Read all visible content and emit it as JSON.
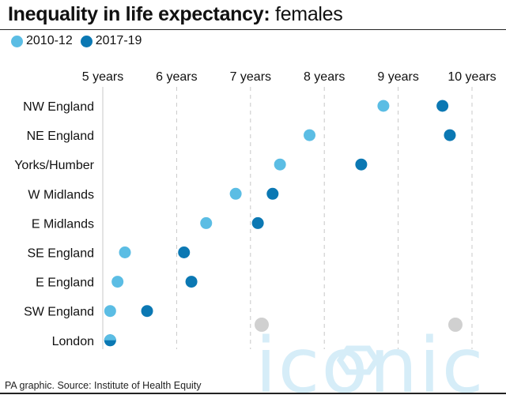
{
  "title_bold": "Inequality in life expectancy:",
  "title_light": "females",
  "source": "PA graphic. Source: Institute of Health Equity",
  "watermark_text": "iconic",
  "colors": {
    "series_2010": "#5bbde4",
    "series_2017": "#0b78b3",
    "grid": "#c8c8c8",
    "watermark": "#d6edf8",
    "watermark_dot": "#d0d0d0"
  },
  "chart_data": {
    "type": "scatter",
    "title": "Inequality in life expectancy: females",
    "x_ticks": [
      5,
      6,
      7,
      8,
      9,
      10
    ],
    "x_tick_labels": [
      "5 years",
      "6 years",
      "7 years",
      "8 years",
      "9 years",
      "10 years"
    ],
    "xlim": [
      5,
      10
    ],
    "grid": true,
    "legend_position": "top-left",
    "categories": [
      "NW England",
      "NE England",
      "Yorks/Humber",
      "W Midlands",
      "E Midlands",
      "SE England",
      "E England",
      "SW England",
      "London"
    ],
    "series": [
      {
        "name": "2010-12",
        "color": "#5bbde4",
        "values": [
          8.8,
          7.8,
          7.4,
          6.8,
          6.4,
          5.3,
          5.2,
          5.1,
          5.1
        ]
      },
      {
        "name": "2017-19",
        "color": "#0b78b3",
        "values": [
          9.6,
          9.7,
          8.5,
          7.3,
          7.1,
          6.1,
          6.2,
          5.6,
          5.1
        ]
      }
    ]
  }
}
